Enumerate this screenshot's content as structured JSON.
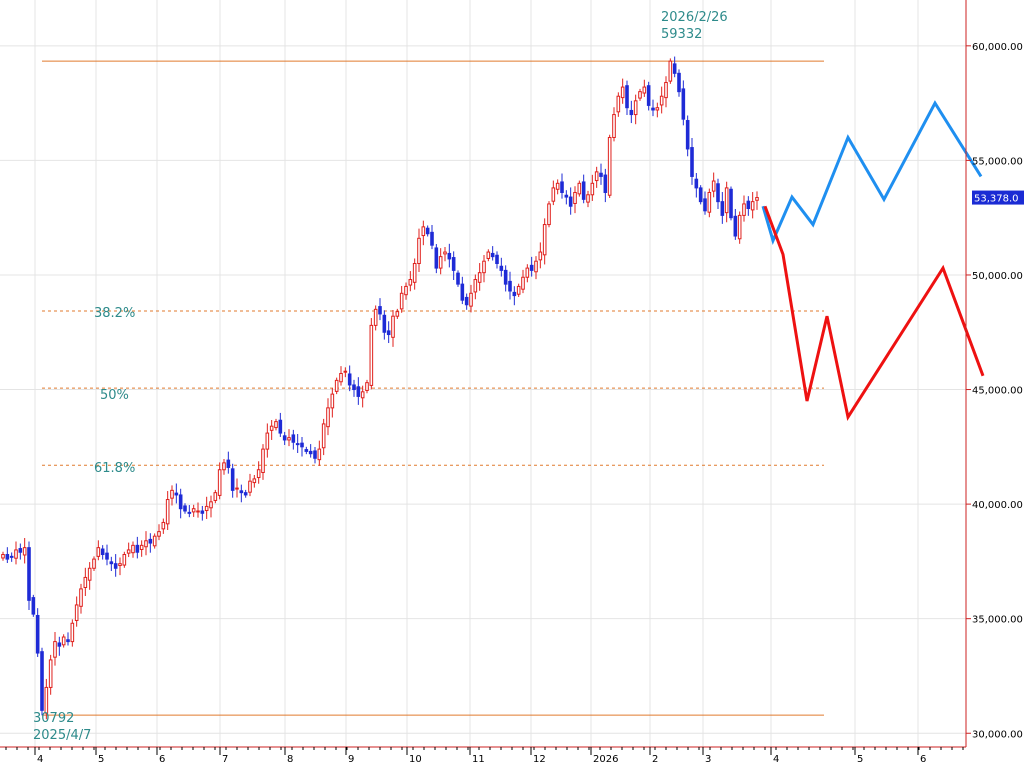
{
  "chart_data": {
    "type": "candlestick",
    "ylim": [
      29400,
      62000
    ],
    "grid": true,
    "y_ticks": [
      {
        "value": 30000,
        "label": "30,000.00"
      },
      {
        "value": 35000,
        "label": "35,000.00"
      },
      {
        "value": 40000,
        "label": "40,000.00"
      },
      {
        "value": 45000,
        "label": "45,000.00"
      },
      {
        "value": 50000,
        "label": "50,000.00"
      },
      {
        "value": 55000,
        "label": "55,000.00"
      },
      {
        "value": 60000,
        "label": "60,000.00"
      }
    ],
    "x_ticks": [
      "4",
      "5",
      "6",
      "7",
      "8",
      "9",
      "10",
      "11",
      "12",
      "2026",
      "2",
      "3",
      "4",
      "5",
      "6"
    ],
    "current_price": {
      "value": 53378,
      "label": "53,378.0"
    },
    "high": {
      "value": 59332,
      "date_label": "2026/2/26",
      "value_label": "59332"
    },
    "low": {
      "value": 30792,
      "date_label": "2025/4/7",
      "value_label": "30792"
    },
    "fib_levels": [
      {
        "label": "38.2%",
        "value": 48430
      },
      {
        "label": "50%",
        "value": 45062
      },
      {
        "label": "61.8%",
        "value": 41694
      }
    ],
    "colors": {
      "up": "#e0201c",
      "down": "#1e2bd6",
      "level": "#e07a2e",
      "scenario_up": "#1f8ff0",
      "scenario_down": "#ee1111",
      "annotation": "#2e8b8b",
      "axis": "#cc2222"
    },
    "closes": [
      37800,
      37600,
      37700,
      38000,
      37900,
      38100,
      35800,
      35200,
      33500,
      31000,
      32000,
      33200,
      34000,
      33800,
      34200,
      34000,
      34800,
      35600,
      36300,
      36800,
      37200,
      37600,
      38100,
      37800,
      37600,
      37400,
      37200,
      37400,
      37800,
      38000,
      38200,
      37900,
      38200,
      38400,
      38300,
      38600,
      38800,
      39200,
      40200,
      40600,
      40400,
      39800,
      39700,
      39600,
      39800,
      39700,
      39600,
      39900,
      40100,
      40500,
      41500,
      41800,
      41600,
      40600,
      40700,
      40500,
      40400,
      41000,
      41100,
      41500,
      42400,
      43100,
      43400,
      43600,
      43100,
      42800,
      42900,
      42700,
      42600,
      42500,
      42300,
      42200,
      42000,
      42400,
      43500,
      44200,
      44800,
      45400,
      45700,
      45800,
      45200,
      45000,
      44700,
      44900,
      45300,
      47800,
      48500,
      48300,
      47500,
      47400,
      48200,
      48400,
      49200,
      49500,
      49800,
      50500,
      51600,
      52100,
      51800,
      51300,
      50300,
      50800,
      51000,
      50700,
      50200,
      49600,
      48900,
      48700,
      49200,
      49800,
      50100,
      50600,
      51000,
      50800,
      50500,
      50200,
      49600,
      49300,
      49100,
      49500,
      49900,
      50300,
      50200,
      50600,
      51000,
      52200,
      53100,
      53800,
      54000,
      53600,
      53400,
      53000,
      53600,
      54000,
      53300,
      53500,
      54000,
      54500,
      54300,
      53600,
      56000,
      57000,
      57800,
      58200,
      57300,
      57000,
      57600,
      58000,
      58200,
      57400,
      57200,
      57300,
      57800,
      58400,
      59332,
      58800,
      58000,
      56800,
      55500,
      54300,
      53800,
      53200,
      52800,
      53600,
      54100,
      53200,
      52600,
      53800,
      52500,
      51700,
      52600,
      53100,
      52900,
      53200,
      53378
    ],
    "scenario_up": [
      [
        53378,
        53378
      ],
      [
        51500,
        51500
      ]
    ],
    "scenario_bull": [
      [
        0,
        53000
      ],
      [
        1,
        51500
      ],
      [
        2,
        53400
      ],
      [
        3,
        52200
      ],
      [
        4,
        56000
      ],
      [
        5,
        53300
      ],
      [
        6,
        57500
      ],
      [
        7,
        54300
      ]
    ],
    "scenario_bear": [
      [
        0,
        53000
      ],
      [
        1,
        44500
      ],
      [
        2,
        48200
      ],
      [
        3,
        43800
      ],
      [
        4,
        50300
      ],
      [
        5,
        45600
      ]
    ]
  }
}
